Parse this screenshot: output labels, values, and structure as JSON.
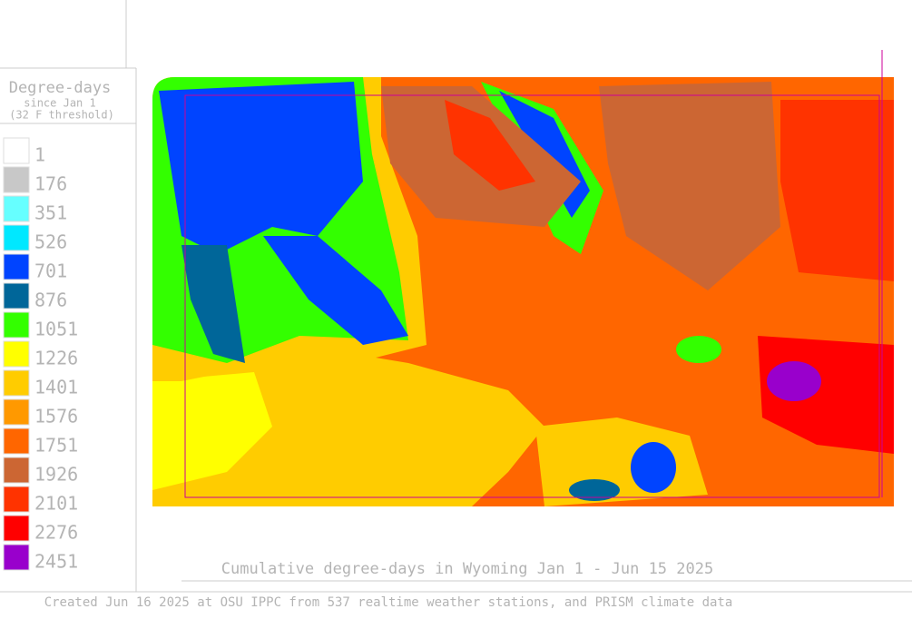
{
  "legend": {
    "title": "Degree-days",
    "subtitle": "since Jan 1",
    "threshold": "(32 F threshold)",
    "items": [
      {
        "value": 1,
        "color": "#ffffff"
      },
      {
        "value": 176,
        "color": "#c8c8c8"
      },
      {
        "value": 351,
        "color": "#66ffff"
      },
      {
        "value": 526,
        "color": "#00e8ff"
      },
      {
        "value": 701,
        "color": "#0044ff"
      },
      {
        "value": 876,
        "color": "#006699"
      },
      {
        "value": 1051,
        "color": "#33ff00"
      },
      {
        "value": 1226,
        "color": "#ffff00"
      },
      {
        "value": 1401,
        "color": "#ffcc00"
      },
      {
        "value": 1576,
        "color": "#ff9900"
      },
      {
        "value": 1751,
        "color": "#ff6600"
      },
      {
        "value": 1926,
        "color": "#cc6633"
      },
      {
        "value": 2101,
        "color": "#ff3300"
      },
      {
        "value": 2276,
        "color": "#ff0000"
      },
      {
        "value": 2451,
        "color": "#9900cc"
      }
    ]
  },
  "caption": "Cumulative degree-days in Wyoming  Jan 1 - Jun 15 2025",
  "footer": "Created Jun 16 2025 at OSU IPPC from 537 realtime weather stations, and PRISM climate data"
}
